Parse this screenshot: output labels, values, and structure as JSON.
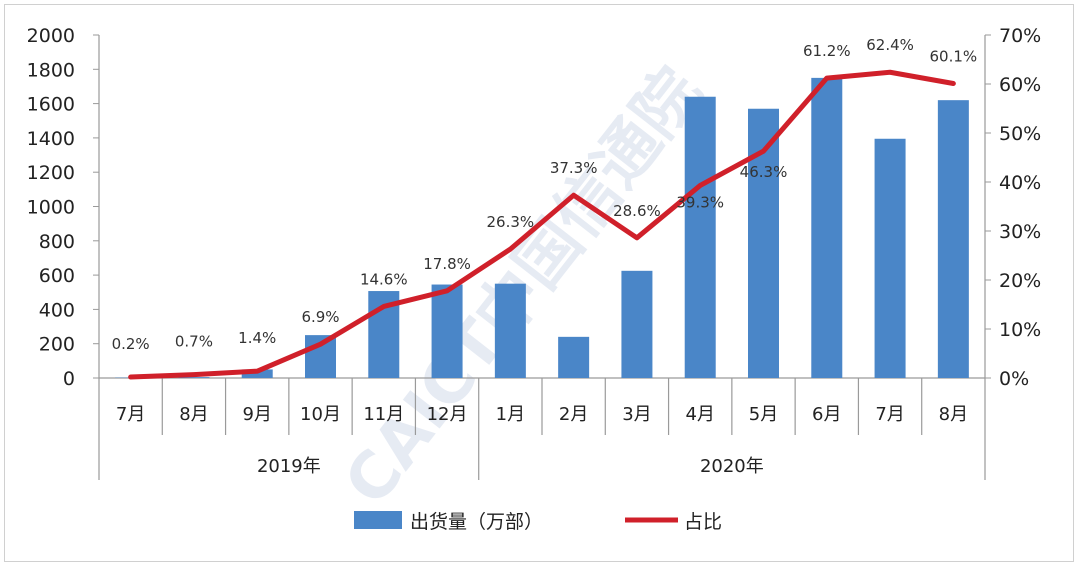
{
  "chart_data": {
    "type": "bar+line",
    "categories": [
      "7月",
      "8月",
      "9月",
      "10月",
      "11月",
      "12月",
      "1月",
      "2月",
      "3月",
      "4月",
      "5月",
      "6月",
      "7月",
      "8月"
    ],
    "groups": [
      {
        "label": "2019年",
        "categories": [
          "7月",
          "8月",
          "9月",
          "10月",
          "11月",
          "12月"
        ]
      },
      {
        "label": "2020年",
        "categories": [
          "1月",
          "2月",
          "3月",
          "4月",
          "5月",
          "6月",
          "7月",
          "8月"
        ]
      }
    ],
    "series": [
      {
        "name": "出货量（万部）",
        "type": "bar",
        "axis": "left",
        "color": "#4a86c8",
        "values": [
          2,
          5,
          50,
          250,
          507,
          545,
          550,
          240,
          625,
          1640,
          1570,
          1750,
          1395,
          1620
        ]
      },
      {
        "name": "占比",
        "type": "line",
        "axis": "right",
        "color": "#d0202a",
        "values": [
          0.2,
          0.7,
          1.4,
          6.9,
          14.6,
          17.8,
          26.3,
          37.3,
          28.6,
          39.3,
          46.3,
          61.2,
          62.4,
          60.1
        ],
        "data_labels": [
          "0.2%",
          "0.7%",
          "1.4%",
          "6.9%",
          "14.6%",
          "17.8%",
          "26.3%",
          "37.3%",
          "28.6%",
          "39.3%",
          "46.3%",
          "61.2%",
          "62.4%",
          "60.1%"
        ]
      }
    ],
    "ylim_left": [
      0,
      2000
    ],
    "yticks_left": [
      "0",
      "200",
      "400",
      "600",
      "800",
      "1000",
      "1200",
      "1400",
      "1600",
      "1800",
      "2000"
    ],
    "ylim_right": [
      0,
      70
    ],
    "yticks_right": [
      "0%",
      "10%",
      "20%",
      "30%",
      "40%",
      "50%",
      "60%",
      "70%"
    ],
    "grid": false,
    "legend_position": "bottom",
    "watermark": "CAICT中国信通院"
  }
}
